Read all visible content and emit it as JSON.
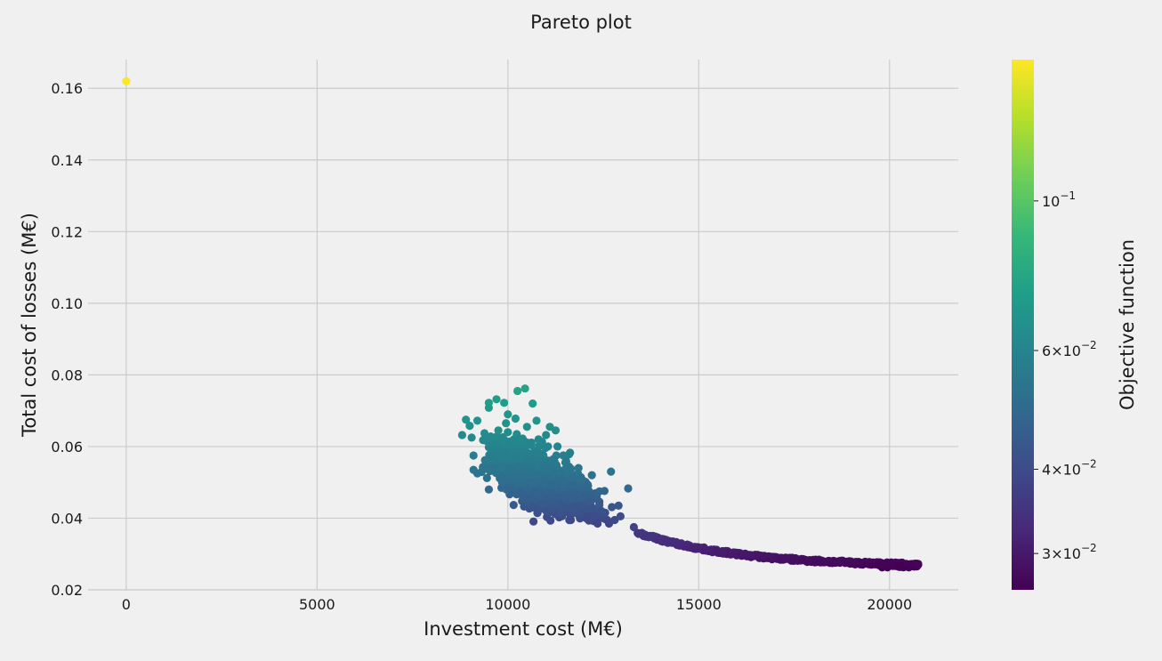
{
  "chart_data": {
    "type": "scatter",
    "title": "Pareto plot",
    "xlabel": "Investment cost (M€)",
    "ylabel": "Total cost of losses (M€)",
    "xlim": [
      -1000,
      21800
    ],
    "ylim": [
      0.02,
      0.168
    ],
    "xticks": [
      0,
      5000,
      10000,
      15000,
      20000
    ],
    "xtick_labels": [
      "0",
      "5000",
      "10000",
      "15000",
      "20000"
    ],
    "yticks": [
      0.02,
      0.04,
      0.06,
      0.08,
      0.1,
      0.12,
      0.14,
      0.16
    ],
    "ytick_labels": [
      "0.02",
      "0.04",
      "0.06",
      "0.08",
      "0.10",
      "0.12",
      "0.14",
      "0.16"
    ],
    "grid": true,
    "colorbar": {
      "label": "Objective function",
      "scale": "log",
      "colormap": "viridis",
      "range": [
        0.0265,
        0.162
      ],
      "ticks": [
        0.03,
        0.04,
        0.06,
        0.1
      ],
      "tick_labels": [
        {
          "base": "3",
          "mult": "×",
          "mant": "10",
          "exp": "−2"
        },
        {
          "base": "4",
          "mult": "×",
          "mant": "10",
          "exp": "−2"
        },
        {
          "base": "6",
          "mult": "×",
          "mant": "10",
          "exp": "−2"
        },
        {
          "base": "",
          "mult": "",
          "mant": "10",
          "exp": "−1"
        }
      ]
    },
    "series": [
      {
        "points": [
          [
            0,
            0.162
          ],
          [
            8800,
            0.0632
          ],
          [
            8900,
            0.0675
          ],
          [
            9000,
            0.0658
          ],
          [
            9050,
            0.0625
          ],
          [
            9100,
            0.0575
          ],
          [
            9100,
            0.0535
          ],
          [
            9200,
            0.0525
          ],
          [
            9200,
            0.0672
          ],
          [
            9350,
            0.0618
          ],
          [
            9400,
            0.0562
          ],
          [
            9450,
            0.0512
          ],
          [
            9500,
            0.048
          ],
          [
            9500,
            0.0598
          ],
          [
            9550,
            0.0628
          ],
          [
            9500,
            0.0722
          ],
          [
            9500,
            0.0708
          ],
          [
            9600,
            0.056
          ],
          [
            9650,
            0.054
          ],
          [
            9700,
            0.0732
          ],
          [
            9750,
            0.0645
          ],
          [
            9800,
            0.059
          ],
          [
            9850,
            0.05
          ],
          [
            9900,
            0.0722
          ],
          [
            9950,
            0.0665
          ],
          [
            10000,
            0.069
          ],
          [
            10000,
            0.064
          ],
          [
            10050,
            0.06
          ],
          [
            10100,
            0.056
          ],
          [
            10150,
            0.0437
          ],
          [
            10150,
            0.052
          ],
          [
            10200,
            0.0678
          ],
          [
            10250,
            0.0755
          ],
          [
            10300,
            0.062
          ],
          [
            10350,
            0.058
          ],
          [
            10400,
            0.046
          ],
          [
            10400,
            0.054
          ],
          [
            10450,
            0.0762
          ],
          [
            10500,
            0.0655
          ],
          [
            10550,
            0.0605
          ],
          [
            10600,
            0.05
          ],
          [
            10650,
            0.072
          ],
          [
            10700,
            0.0475
          ],
          [
            10750,
            0.0672
          ],
          [
            10800,
            0.062
          ],
          [
            10850,
            0.058
          ],
          [
            10900,
            0.044
          ],
          [
            10950,
            0.054
          ],
          [
            11000,
            0.0632
          ],
          [
            11050,
            0.06
          ],
          [
            11100,
            0.0655
          ],
          [
            11150,
            0.047
          ],
          [
            11200,
            0.052
          ],
          [
            11250,
            0.0645
          ],
          [
            11300,
            0.06
          ],
          [
            11350,
            0.0435
          ],
          [
            11400,
            0.05
          ],
          [
            11450,
            0.0575
          ],
          [
            11500,
            0.0455
          ],
          [
            11550,
            0.054
          ],
          [
            11600,
            0.0578
          ],
          [
            11650,
            0.0395
          ],
          [
            11700,
            0.049
          ],
          [
            11750,
            0.047
          ],
          [
            11800,
            0.043
          ],
          [
            11850,
            0.054
          ],
          [
            11900,
            0.051
          ],
          [
            11950,
            0.0415
          ],
          [
            12000,
            0.046
          ],
          [
            12050,
            0.04
          ],
          [
            12100,
            0.049
          ],
          [
            12150,
            0.0445
          ],
          [
            12200,
            0.052
          ],
          [
            12250,
            0.0405
          ],
          [
            12300,
            0.047
          ],
          [
            12350,
            0.0385
          ],
          [
            12400,
            0.0475
          ],
          [
            12450,
            0.042
          ],
          [
            12500,
            0.04
          ],
          [
            12550,
            0.0415
          ],
          [
            12600,
            0.0395
          ],
          [
            12650,
            0.0385
          ],
          [
            12700,
            0.053
          ],
          [
            12800,
            0.0395
          ],
          [
            12900,
            0.0435
          ],
          [
            12950,
            0.0405
          ],
          [
            13150,
            0.0483
          ],
          [
            13300,
            0.0375
          ]
        ]
      }
    ]
  }
}
